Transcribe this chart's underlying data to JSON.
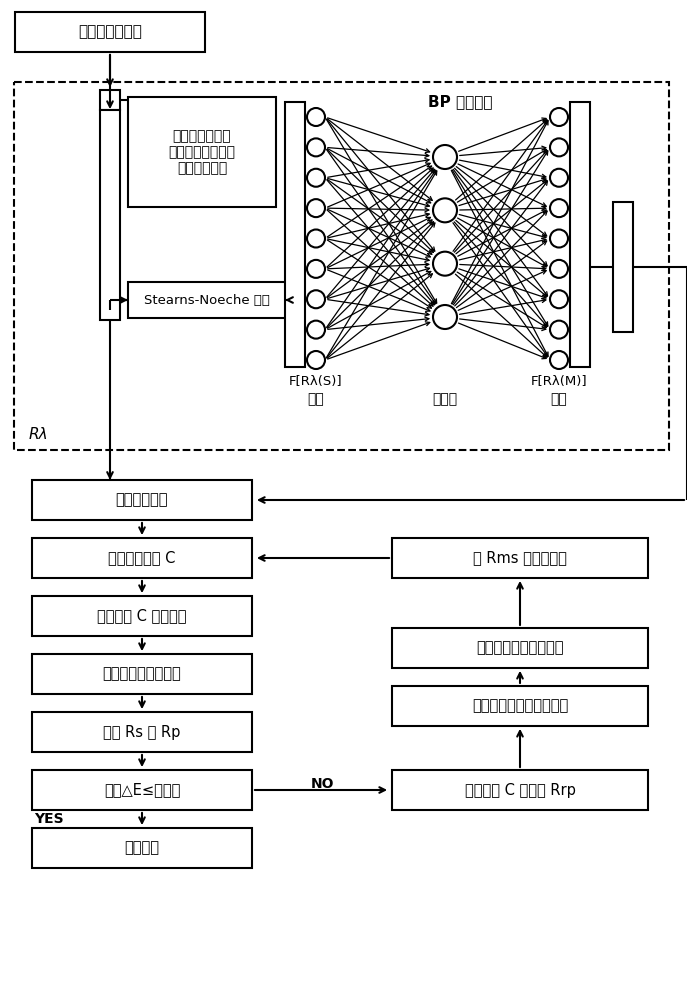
{
  "top_box_text": "测量标样反射率",
  "db_box_text": "测定样品与单色\n纤维的反射率，制\n作基础数据库",
  "sn_box_text": "Stearns-Noeche 模型",
  "bp_label": "BP 神经网络",
  "input_label": "F[Rλ(S)]",
  "input_sub": "输入",
  "hidden_sub": "隐含层",
  "output_label": "F[Rλ(M)]",
  "output_sub": "输出",
  "r_lambda": "Rλ",
  "flow_boxes": [
    "光谱配色算法",
    "计算初始配方 C",
    "根据配方 C 制备样品",
    "测量制备样品的反射",
    "比较 Rs 与 Rp",
    "计算△E≤设定值",
    "输出配方"
  ],
  "right_boxes": [
    "由 Rms 作为新标准",
    "修正标准样的模型光谱",
    "计算与实际光谱间的差异",
    "合成配方 C 的光谱 Rrp"
  ],
  "yes_label": "YES",
  "no_label": "NO",
  "n_input": 9,
  "n_hidden": 4,
  "n_output": 9
}
